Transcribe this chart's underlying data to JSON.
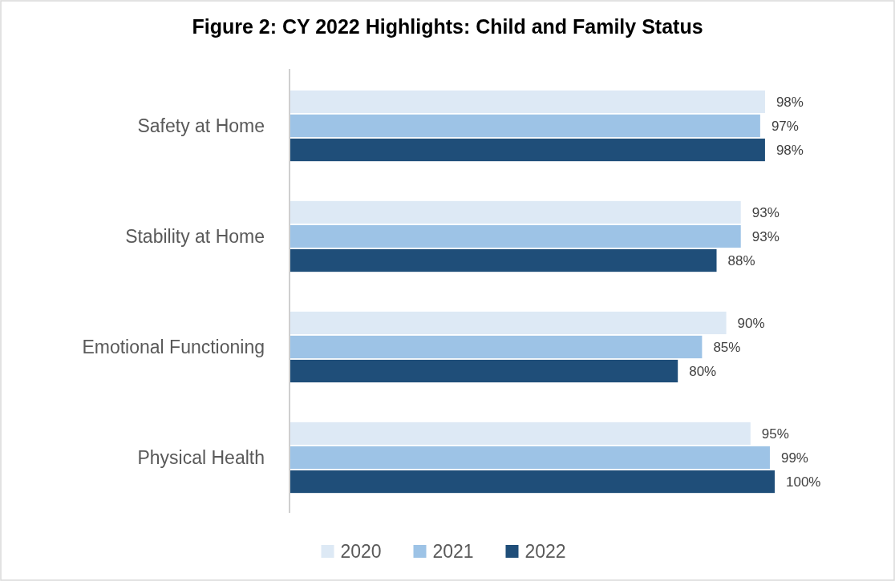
{
  "chart_data": {
    "type": "bar",
    "title": "Figure 2: CY 2022 Highlights: Child and Family Status",
    "orientation": "horizontal",
    "categories": [
      "Safety at Home",
      "Stability at Home",
      "Emotional Functioning",
      "Physical Health"
    ],
    "series": [
      {
        "name": "2020",
        "color": "#dde9f5",
        "values": [
          98,
          93,
          90,
          95
        ],
        "value_labels": [
          "98%",
          "93%",
          "90%",
          "95%"
        ]
      },
      {
        "name": "2021",
        "color": "#9dc3e6",
        "values": [
          97,
          93,
          85,
          99
        ],
        "value_labels": [
          "97%",
          "93%",
          "85%",
          "99%"
        ]
      },
      {
        "name": "2022",
        "color": "#1f4e79",
        "values": [
          98,
          88,
          80,
          100
        ],
        "value_labels": [
          "98%",
          "88%",
          "80%",
          "100%"
        ]
      }
    ],
    "legend": "bottom"
  }
}
